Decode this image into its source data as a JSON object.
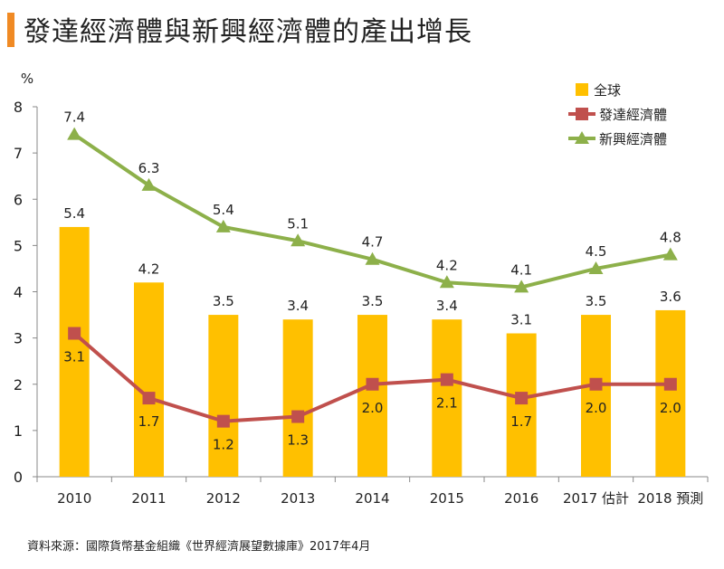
{
  "page": {
    "title": "發達經濟體與新興經濟體的產出增長",
    "source": "資料來源：國際貨幣基金組織《世界經濟展望數據庫》2017年4月"
  },
  "colors": {
    "accent": "#f08a24",
    "bar": "#ffc000",
    "developed": "#c0504d",
    "emerging": "#8db04a"
  },
  "chart_data": {
    "type": "bar",
    "ylabel": "%",
    "ylim": [
      0,
      8
    ],
    "yticks": [
      0,
      1,
      2,
      3,
      4,
      5,
      6,
      7,
      8
    ],
    "categories": [
      "2010",
      "2011",
      "2012",
      "2013",
      "2014",
      "2015",
      "2016",
      "2017 估計",
      "2018 預測"
    ],
    "series": [
      {
        "name": "全球",
        "kind": "bar",
        "values": [
          5.4,
          4.2,
          3.5,
          3.4,
          3.5,
          3.4,
          3.1,
          3.5,
          3.6
        ]
      },
      {
        "name": "發達經濟體",
        "kind": "line",
        "marker": "square",
        "values": [
          3.1,
          1.7,
          1.2,
          1.3,
          2.0,
          2.1,
          1.7,
          2.0,
          2.0
        ]
      },
      {
        "name": "新興經濟體",
        "kind": "line",
        "marker": "triangle",
        "values": [
          7.4,
          6.3,
          5.4,
          5.1,
          4.7,
          4.2,
          4.1,
          4.5,
          4.8
        ]
      }
    ],
    "legend_position": "top-right"
  }
}
